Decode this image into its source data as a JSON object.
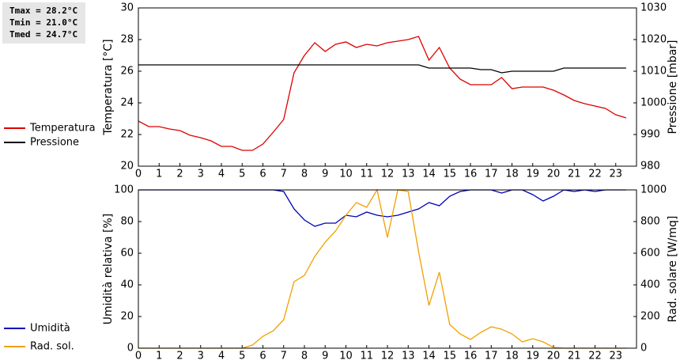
{
  "chart_data": [
    {
      "type": "line",
      "annotations": [
        "Tmax = 28.2°C",
        "Tmin = 21.0°C",
        "Tmed = 24.7°C"
      ],
      "ylabel": "Temperatura [°C]",
      "y2label": "Pressione [mbar]",
      "x": [
        0,
        0.5,
        1,
        1.5,
        2,
        2.5,
        3,
        3.5,
        4,
        4.5,
        5,
        5.5,
        6,
        6.5,
        7,
        7.5,
        8,
        8.5,
        9,
        9.5,
        10,
        10.5,
        11,
        11.5,
        12,
        12.5,
        13,
        13.5,
        14,
        14.5,
        15,
        15.5,
        16,
        16.5,
        17,
        17.5,
        18,
        18.5,
        19,
        19.5,
        20,
        20.5,
        21,
        21.5,
        22,
        22.5,
        23,
        23.5
      ],
      "xlim": [
        0,
        24
      ],
      "xticks": [
        0,
        1,
        2,
        3,
        4,
        5,
        6,
        7,
        8,
        9,
        10,
        11,
        12,
        13,
        14,
        15,
        16,
        17,
        18,
        19,
        20,
        21,
        22,
        23
      ],
      "ylim": [
        20,
        30
      ],
      "yticks": [
        20,
        22,
        24,
        26,
        28,
        30
      ],
      "y2lim": [
        980,
        1030
      ],
      "y2ticks": [
        980,
        990,
        1000,
        1010,
        1020,
        1030
      ],
      "series": [
        {
          "name": "Temperatura",
          "color": "#dd0000",
          "values": [
            22.85,
            22.5,
            22.5,
            22.35,
            22.25,
            21.95,
            21.8,
            21.6,
            21.25,
            21.25,
            21.0,
            21.0,
            21.4,
            22.15,
            22.95,
            25.9,
            27.0,
            27.8,
            27.25,
            27.7,
            27.85,
            27.5,
            27.7,
            27.6,
            27.8,
            27.9,
            28.0,
            28.2,
            26.7,
            27.5,
            26.2,
            25.5,
            25.15,
            25.15,
            25.15,
            25.6,
            24.9,
            25.0,
            25.0,
            25.0,
            24.8,
            24.5,
            24.15,
            23.95,
            23.8,
            23.65,
            23.25,
            23.05
          ]
        },
        {
          "name": "Pressione",
          "color": "#000000",
          "axis": "y2",
          "values": [
            1012,
            1012,
            1012,
            1012,
            1012,
            1012,
            1012,
            1012,
            1012,
            1012,
            1012,
            1012,
            1012,
            1012,
            1012,
            1012,
            1012,
            1012,
            1012,
            1012,
            1012,
            1012,
            1012,
            1012,
            1012,
            1012,
            1012,
            1012,
            1011,
            1011,
            1011,
            1011,
            1011,
            1010.5,
            1010.5,
            1009.5,
            1010,
            1010,
            1010,
            1010,
            1010,
            1011,
            1011,
            1011,
            1011,
            1011,
            1011,
            1011
          ]
        }
      ]
    },
    {
      "type": "line",
      "ylabel": "Umidità relativa [%]",
      "y2label": "Rad. solare [W/mq]",
      "x": [
        0,
        0.5,
        1,
        1.5,
        2,
        2.5,
        3,
        3.5,
        4,
        4.5,
        5,
        5.5,
        6,
        6.5,
        7,
        7.5,
        8,
        8.5,
        9,
        9.5,
        10,
        10.5,
        11,
        11.5,
        12,
        12.5,
        13,
        13.5,
        14,
        14.5,
        15,
        15.5,
        16,
        16.5,
        17,
        17.5,
        18,
        18.5,
        19,
        19.5,
        20,
        20.5,
        21,
        21.5,
        22,
        22.5,
        23,
        23.5
      ],
      "xlim": [
        0,
        24
      ],
      "xticks": [
        0,
        1,
        2,
        3,
        4,
        5,
        6,
        7,
        8,
        9,
        10,
        11,
        12,
        13,
        14,
        15,
        16,
        17,
        18,
        19,
        20,
        21,
        22,
        23
      ],
      "ylim": [
        0,
        100
      ],
      "yticks": [
        0,
        20,
        40,
        60,
        80,
        100
      ],
      "y2lim": [
        0,
        1000
      ],
      "y2ticks": [
        0,
        200,
        400,
        600,
        800,
        1000
      ],
      "series": [
        {
          "name": "Umidità",
          "color": "#0000bb",
          "values": [
            100,
            100,
            100,
            100,
            100,
            100,
            100,
            100,
            100,
            100,
            100,
            100,
            100,
            100,
            99,
            88,
            81,
            77,
            79,
            79,
            84,
            83,
            86,
            84,
            83,
            84,
            86,
            88,
            92,
            90,
            96,
            99,
            100,
            100,
            100,
            98,
            100,
            100,
            97,
            93,
            96,
            100,
            99,
            100,
            99,
            100,
            100,
            100
          ]
        },
        {
          "name": "Rad. sol.",
          "color": "#f0a000",
          "axis": "y2",
          "values": [
            0,
            0,
            0,
            0,
            0,
            0,
            0,
            0,
            0,
            0,
            0,
            20,
            75,
            110,
            180,
            420,
            460,
            580,
            670,
            740,
            840,
            920,
            890,
            1000,
            700,
            1000,
            990,
            610,
            270,
            480,
            150,
            90,
            55,
            100,
            135,
            120,
            90,
            40,
            60,
            40,
            5,
            0,
            0,
            0,
            0,
            0,
            0,
            0
          ]
        }
      ]
    }
  ]
}
